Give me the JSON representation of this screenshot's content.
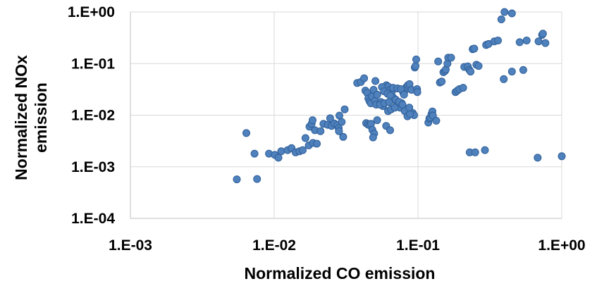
{
  "chart_data": {
    "type": "scatter",
    "title": "",
    "xlabel": "Normalized CO emission",
    "ylabel_lines": [
      "Normalized NOx",
      "emission"
    ],
    "x_scale": "log",
    "y_scale": "log",
    "xlim": [
      0.001,
      1
    ],
    "ylim": [
      0.0001,
      1
    ],
    "x_ticks": [
      0.001,
      0.01,
      0.1,
      1
    ],
    "x_tick_labels": [
      "1.E-03",
      "1.E-02",
      "1.E-01",
      "1.E+00"
    ],
    "y_ticks": [
      0.0001,
      0.001,
      0.01,
      0.1,
      1
    ],
    "y_tick_labels": [
      "1.E-04",
      "1.E-03",
      "1.E-02",
      "1.E-01",
      "1.E+00"
    ],
    "grid": true,
    "legend": "none",
    "colors": {
      "marker_fill": "#4f81bd",
      "marker_stroke": "#2f5f98",
      "grid": "#d9d9d9",
      "axis": "#bfbfbf"
    },
    "series": [
      {
        "points": [
          [
            0.0055,
            0.00057
          ],
          [
            0.0076,
            0.00058
          ],
          [
            0.0064,
            0.0045
          ],
          [
            0.0073,
            0.0018
          ],
          [
            0.0092,
            0.0018
          ],
          [
            0.0101,
            0.0017
          ],
          [
            0.0107,
            0.0015
          ],
          [
            0.0112,
            0.002
          ],
          [
            0.0124,
            0.0021
          ],
          [
            0.0132,
            0.0023
          ],
          [
            0.0141,
            0.0019
          ],
          [
            0.015,
            0.002
          ],
          [
            0.0158,
            0.0021
          ],
          [
            0.0165,
            0.0036
          ],
          [
            0.0174,
            0.0026
          ],
          [
            0.0186,
            0.0029
          ],
          [
            0.0198,
            0.0028
          ],
          [
            0.0176,
            0.006
          ],
          [
            0.0182,
            0.0068
          ],
          [
            0.0185,
            0.008
          ],
          [
            0.0192,
            0.0051
          ],
          [
            0.021,
            0.0049
          ],
          [
            0.022,
            0.0068
          ],
          [
            0.0236,
            0.0065
          ],
          [
            0.0251,
            0.0062
          ],
          [
            0.0262,
            0.0069
          ],
          [
            0.0275,
            0.0064
          ],
          [
            0.0281,
            0.0056
          ],
          [
            0.0284,
            0.0098
          ],
          [
            0.0295,
            0.0074
          ],
          [
            0.0302,
            0.0038
          ],
          [
            0.0309,
            0.013
          ],
          [
            0.0282,
            0.0049
          ],
          [
            0.0245,
            0.0087
          ],
          [
            0.0378,
            0.042
          ],
          [
            0.0401,
            0.044
          ],
          [
            0.0422,
            0.052
          ],
          [
            0.0431,
            0.03
          ],
          [
            0.0443,
            0.027
          ],
          [
            0.0452,
            0.021
          ],
          [
            0.0461,
            0.0185
          ],
          [
            0.047,
            0.017
          ],
          [
            0.0478,
            0.023
          ],
          [
            0.0491,
            0.031
          ],
          [
            0.0503,
            0.019
          ],
          [
            0.0512,
            0.016
          ],
          [
            0.0521,
            0.025
          ],
          [
            0.0436,
            0.007
          ],
          [
            0.0449,
            0.0066
          ],
          [
            0.046,
            0.0064
          ],
          [
            0.0471,
            0.0068
          ],
          [
            0.0482,
            0.0052
          ],
          [
            0.0496,
            0.0044
          ],
          [
            0.0487,
            0.0037
          ],
          [
            0.0506,
            0.046
          ],
          [
            0.052,
            0.008
          ],
          [
            0.0552,
            0.018
          ],
          [
            0.0572,
            0.015
          ],
          [
            0.0591,
            0.034
          ],
          [
            0.0603,
            0.038
          ],
          [
            0.062,
            0.036
          ],
          [
            0.064,
            0.031
          ],
          [
            0.066,
            0.029
          ],
          [
            0.0672,
            0.022
          ],
          [
            0.069,
            0.02
          ],
          [
            0.0712,
            0.016
          ],
          [
            0.0731,
            0.015
          ],
          [
            0.0752,
            0.014
          ],
          [
            0.0771,
            0.017
          ],
          [
            0.0791,
            0.027
          ],
          [
            0.0812,
            0.03
          ],
          [
            0.083,
            0.035
          ],
          [
            0.0851,
            0.038
          ],
          [
            0.0873,
            0.04
          ],
          [
            0.0902,
            0.031
          ],
          [
            0.0921,
            0.011
          ],
          [
            0.094,
            0.01
          ],
          [
            0.062,
            0.012
          ],
          [
            0.065,
            0.013
          ],
          [
            0.069,
            0.014
          ],
          [
            0.0601,
            0.0062
          ],
          [
            0.064,
            0.0051
          ],
          [
            0.0562,
            0.035
          ],
          [
            0.0581,
            0.029
          ],
          [
            0.0615,
            0.026
          ],
          [
            0.0643,
            0.024
          ],
          [
            0.07,
            0.02
          ],
          [
            0.074,
            0.018
          ],
          [
            0.078,
            0.016
          ],
          [
            0.081,
            0.012
          ],
          [
            0.0845,
            0.0095
          ],
          [
            0.088,
            0.0105
          ],
          [
            0.067,
            0.034
          ],
          [
            0.072,
            0.033
          ],
          [
            0.076,
            0.032
          ],
          [
            0.08,
            0.025
          ],
          [
            0.087,
            0.014
          ],
          [
            0.0545,
            0.016
          ],
          [
            0.0585,
            0.017
          ],
          [
            0.063,
            0.018
          ],
          [
            0.095,
            0.084
          ],
          [
            0.0962,
            0.09
          ],
          [
            0.0972,
            0.12
          ],
          [
            0.0985,
            0.032
          ],
          [
            0.099,
            0.028
          ],
          [
            0.118,
            0.0072
          ],
          [
            0.12,
            0.0086
          ],
          [
            0.122,
            0.009
          ],
          [
            0.1242,
            0.0105
          ],
          [
            0.126,
            0.0118
          ],
          [
            0.127,
            0.0098
          ],
          [
            0.134,
            0.0078
          ],
          [
            0.1382,
            0.11
          ],
          [
            0.1421,
            0.043
          ],
          [
            0.1462,
            0.045
          ],
          [
            0.1503,
            0.068
          ],
          [
            0.1542,
            0.072
          ],
          [
            0.1562,
            0.077
          ],
          [
            0.1603,
            0.1
          ],
          [
            0.1622,
            0.13
          ],
          [
            0.17,
            0.13
          ],
          [
            0.1823,
            0.028
          ],
          [
            0.188,
            0.03
          ],
          [
            0.1942,
            0.032
          ],
          [
            0.2061,
            0.034
          ],
          [
            0.21,
            0.086
          ],
          [
            0.222,
            0.088
          ],
          [
            0.228,
            0.075
          ],
          [
            0.232,
            0.07
          ],
          [
            0.24,
            0.19
          ],
          [
            0.246,
            0.195
          ],
          [
            0.255,
            0.095
          ],
          [
            0.264,
            0.09
          ],
          [
            0.229,
            0.0019
          ],
          [
            0.25,
            0.0019
          ],
          [
            0.2921,
            0.0021
          ],
          [
            0.298,
            0.23
          ],
          [
            0.31,
            0.24
          ],
          [
            0.34,
            0.27
          ],
          [
            0.36,
            0.28
          ],
          [
            0.38,
            0.72
          ],
          [
            0.395,
            0.05
          ],
          [
            0.4,
            1.0
          ],
          [
            0.45,
            0.94
          ],
          [
            0.45,
            0.07
          ],
          [
            0.51,
            0.26
          ],
          [
            0.54,
            0.075
          ],
          [
            0.57,
            0.28
          ],
          [
            0.68,
            0.0015
          ],
          [
            0.69,
            0.27
          ],
          [
            0.73,
            0.36
          ],
          [
            0.74,
            0.38
          ],
          [
            0.77,
            0.25
          ],
          [
            1.0,
            0.0016
          ]
        ]
      }
    ]
  }
}
